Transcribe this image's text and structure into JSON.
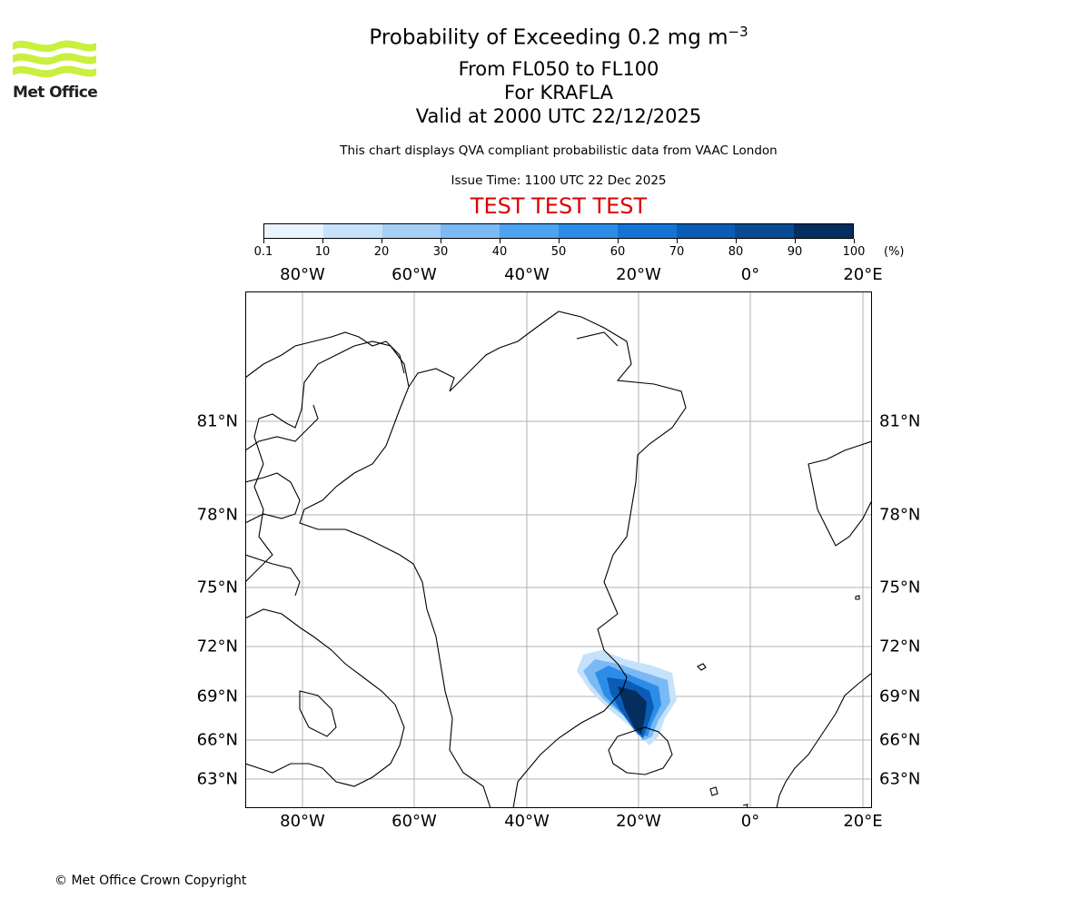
{
  "header": {
    "title_main": "Probability of Exceeding 0.2 mg m",
    "title_sup": "−3",
    "level_range": "From FL050 to FL100",
    "volcano": "For KRAFLA",
    "valid_time": "Valid at 2000 UTC 22/12/2025",
    "subtitle": "This chart displays QVA compliant probabilistic data from VAAC London",
    "issue_time": "Issue Time: 1100 UTC 22 Dec 2025",
    "test_banner": "TEST TEST TEST",
    "test_banner_color": "#dd0000"
  },
  "logo": {
    "text": "Met Office",
    "icon": "met-office-wave-logo",
    "color": "#c8f03c"
  },
  "colorbar": {
    "labels": [
      "0.1",
      "10",
      "20",
      "30",
      "40",
      "50",
      "60",
      "70",
      "80",
      "90",
      "100"
    ],
    "unit": "(%)",
    "colors": [
      "#eaf4ff",
      "#c6e2fb",
      "#a4d0f8",
      "#7ab9f4",
      "#4ea2ef",
      "#2b8de8",
      "#1474d6",
      "#0b5cb6",
      "#084a93",
      "#032e5e"
    ]
  },
  "map": {
    "lon_labels": [
      "80°W",
      "60°W",
      "40°W",
      "20°W",
      "0°",
      "20°E"
    ],
    "lat_labels": [
      "81°N",
      "78°N",
      "75°N",
      "72°N",
      "69°N",
      "66°N",
      "63°N"
    ],
    "ash_region": "plume over north-east Iceland and Greenland Sea"
  },
  "footer": {
    "copyright": "© Met Office Crown Copyright"
  }
}
